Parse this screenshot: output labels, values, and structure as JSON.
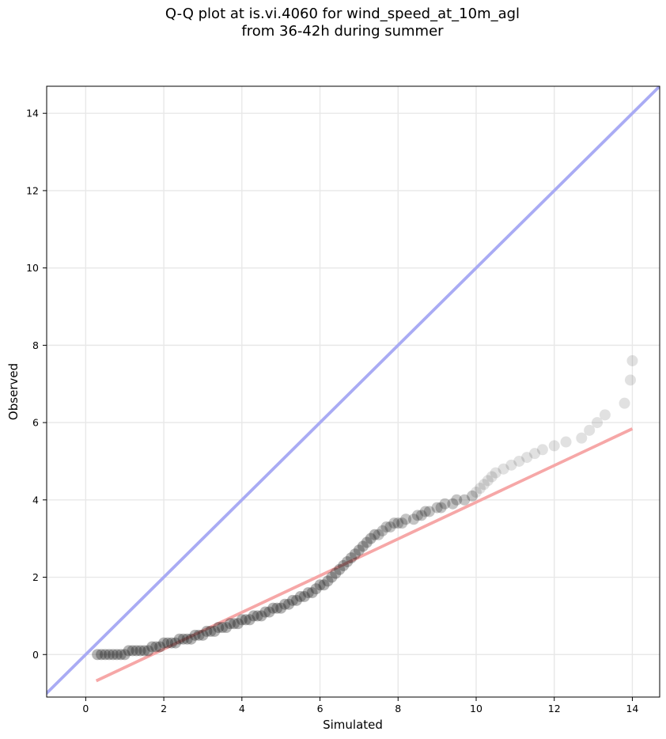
{
  "chart_data": {
    "type": "scatter",
    "title_lines": [
      "Q-Q plot at is.vi.4060 for wind_speed_at_10m_agl",
      "from 36-42h during summer"
    ],
    "xlabel": "Simulated",
    "ylabel": "Observed",
    "xlim": [
      -1.0,
      14.7
    ],
    "ylim": [
      -1.1,
      14.7
    ],
    "xticks": [
      0,
      2,
      4,
      6,
      8,
      10,
      12,
      14
    ],
    "yticks": [
      0,
      2,
      4,
      6,
      8,
      10,
      12,
      14
    ],
    "grid": true,
    "reference_line": {
      "name": "1:1",
      "color": "#a9abf4",
      "slope": 1,
      "intercept": 0
    },
    "fit_line": {
      "color": "#f6a7a7",
      "x": [
        0.27,
        14.0
      ],
      "y": [
        -0.68,
        5.84
      ]
    },
    "points_color": "#1a1a1a",
    "points": [
      [
        0.3,
        0.0
      ],
      [
        0.4,
        0.0
      ],
      [
        0.5,
        0.0
      ],
      [
        0.6,
        0.0
      ],
      [
        0.7,
        0.0
      ],
      [
        0.8,
        0.0
      ],
      [
        0.9,
        0.0
      ],
      [
        1.0,
        0.0
      ],
      [
        1.1,
        0.1
      ],
      [
        1.2,
        0.1
      ],
      [
        1.3,
        0.1
      ],
      [
        1.4,
        0.1
      ],
      [
        1.5,
        0.1
      ],
      [
        1.6,
        0.1
      ],
      [
        1.7,
        0.2
      ],
      [
        1.8,
        0.2
      ],
      [
        1.9,
        0.2
      ],
      [
        2.0,
        0.3
      ],
      [
        2.1,
        0.3
      ],
      [
        2.2,
        0.3
      ],
      [
        2.3,
        0.3
      ],
      [
        2.4,
        0.4
      ],
      [
        2.5,
        0.4
      ],
      [
        2.6,
        0.4
      ],
      [
        2.7,
        0.4
      ],
      [
        2.8,
        0.5
      ],
      [
        2.9,
        0.5
      ],
      [
        3.0,
        0.5
      ],
      [
        3.1,
        0.6
      ],
      [
        3.2,
        0.6
      ],
      [
        3.3,
        0.6
      ],
      [
        3.4,
        0.7
      ],
      [
        3.5,
        0.7
      ],
      [
        3.6,
        0.7
      ],
      [
        3.7,
        0.8
      ],
      [
        3.8,
        0.8
      ],
      [
        3.9,
        0.8
      ],
      [
        4.0,
        0.9
      ],
      [
        4.1,
        0.9
      ],
      [
        4.2,
        0.9
      ],
      [
        4.3,
        1.0
      ],
      [
        4.4,
        1.0
      ],
      [
        4.5,
        1.0
      ],
      [
        4.6,
        1.1
      ],
      [
        4.7,
        1.1
      ],
      [
        4.8,
        1.2
      ],
      [
        4.9,
        1.2
      ],
      [
        5.0,
        1.2
      ],
      [
        5.1,
        1.3
      ],
      [
        5.2,
        1.3
      ],
      [
        5.3,
        1.4
      ],
      [
        5.4,
        1.4
      ],
      [
        5.5,
        1.5
      ],
      [
        5.6,
        1.5
      ],
      [
        5.7,
        1.6
      ],
      [
        5.8,
        1.6
      ],
      [
        5.9,
        1.7
      ],
      [
        6.0,
        1.8
      ],
      [
        6.1,
        1.8
      ],
      [
        6.2,
        1.9
      ],
      [
        6.3,
        2.0
      ],
      [
        6.4,
        2.1
      ],
      [
        6.5,
        2.2
      ],
      [
        6.6,
        2.3
      ],
      [
        6.7,
        2.4
      ],
      [
        6.8,
        2.5
      ],
      [
        6.9,
        2.6
      ],
      [
        7.0,
        2.7
      ],
      [
        7.1,
        2.8
      ],
      [
        7.2,
        2.9
      ],
      [
        7.3,
        3.0
      ],
      [
        7.4,
        3.1
      ],
      [
        7.5,
        3.1
      ],
      [
        7.6,
        3.2
      ],
      [
        7.7,
        3.3
      ],
      [
        7.8,
        3.3
      ],
      [
        7.9,
        3.4
      ],
      [
        8.0,
        3.4
      ],
      [
        8.1,
        3.4
      ],
      [
        8.2,
        3.5
      ],
      [
        8.4,
        3.5
      ],
      [
        8.5,
        3.6
      ],
      [
        8.6,
        3.6
      ],
      [
        8.7,
        3.7
      ],
      [
        8.8,
        3.7
      ],
      [
        9.0,
        3.8
      ],
      [
        9.1,
        3.8
      ],
      [
        9.2,
        3.9
      ],
      [
        9.4,
        3.9
      ],
      [
        9.5,
        4.0
      ],
      [
        9.7,
        4.0
      ],
      [
        9.9,
        4.1
      ],
      [
        10.0,
        4.2
      ],
      [
        10.1,
        4.3
      ],
      [
        10.2,
        4.4
      ],
      [
        10.3,
        4.5
      ],
      [
        10.4,
        4.6
      ],
      [
        10.5,
        4.7
      ],
      [
        10.7,
        4.8
      ],
      [
        10.9,
        4.9
      ],
      [
        11.1,
        5.0
      ],
      [
        11.3,
        5.1
      ],
      [
        11.5,
        5.2
      ],
      [
        11.7,
        5.3
      ],
      [
        12.0,
        5.4
      ],
      [
        12.3,
        5.5
      ],
      [
        12.7,
        5.6
      ],
      [
        12.9,
        5.8
      ],
      [
        13.1,
        6.0
      ],
      [
        13.3,
        6.2
      ],
      [
        13.8,
        6.5
      ],
      [
        13.95,
        7.1
      ],
      [
        14.0,
        7.6
      ]
    ]
  }
}
